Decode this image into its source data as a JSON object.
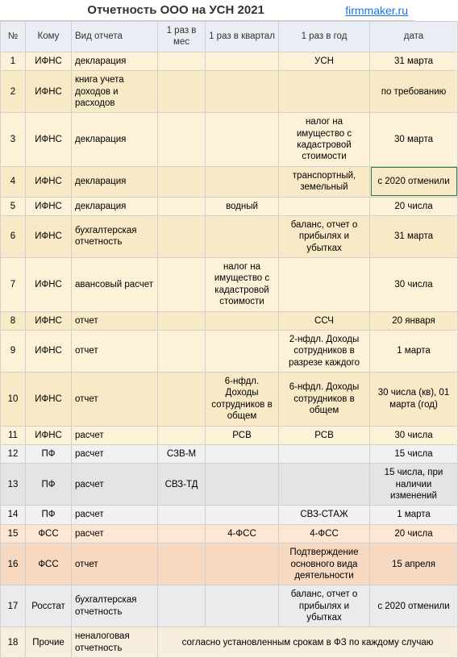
{
  "header": {
    "title": "Отчетность ООО на УСН 2021",
    "sitelink": "firmmaker.ru"
  },
  "columns": {
    "num": "№",
    "who": "Кому",
    "type": "Вид отчета",
    "mes": "1 раз в мес",
    "kv": "1 раз в квартал",
    "god": "1 раз в год",
    "date": "дата"
  },
  "rows": [
    {
      "n": "1",
      "who": "ИФНС",
      "type": "декларация",
      "mes": "",
      "kv": "",
      "god": "УСН",
      "date": "31 марта",
      "grp": "grp-ifns-odd"
    },
    {
      "n": "2",
      "who": "ИФНС",
      "type": "книга учета доходов и расходов",
      "mes": "",
      "kv": "",
      "god": "",
      "date": "по требованию",
      "grp": "grp-ifns-even"
    },
    {
      "n": "3",
      "who": "ИФНС",
      "type": "декларация",
      "mes": "",
      "kv": "",
      "god": "налог на имущество с кадастровой стоимости",
      "date": "30 марта",
      "grp": "grp-ifns-odd"
    },
    {
      "n": "4",
      "who": "ИФНС",
      "type": "декларация",
      "mes": "",
      "kv": "",
      "god": "транспортный, земельный",
      "date": "с 2020 отменили",
      "grp": "grp-ifns-even",
      "boxdate": true
    },
    {
      "n": "5",
      "who": "ИФНС",
      "type": "декларация",
      "mes": "",
      "kv": "водный",
      "god": "",
      "date": "20 числа",
      "grp": "grp-ifns-odd"
    },
    {
      "n": "6",
      "who": "ИФНС",
      "type": "бухгалтерская отчетность",
      "mes": "",
      "kv": "",
      "god": "баланс, отчет о прибылях и убытках",
      "date": "31 марта",
      "grp": "grp-ifns-even"
    },
    {
      "n": "7",
      "who": "ИФНС",
      "type": "авансовый расчет",
      "mes": "",
      "kv": "налог на имущество с кадастровой стоимости",
      "god": "",
      "date": "30 числа",
      "grp": "grp-ifns-odd"
    },
    {
      "n": "8",
      "who": "ИФНС",
      "type": "отчет",
      "mes": "",
      "kv": "",
      "god": "ССЧ",
      "date": "20 января",
      "grp": "grp-ifns-even"
    },
    {
      "n": "9",
      "who": "ИФНС",
      "type": "отчет",
      "mes": "",
      "kv": "",
      "god": "2-нфдл. Доходы сотрудников в разрезе каждого",
      "date": "1 марта",
      "grp": "grp-ifns-odd"
    },
    {
      "n": "10",
      "who": "ИФНС",
      "type": "отчет",
      "mes": "",
      "kv": "6-нфдл. Доходы сотрудников в общем",
      "god": "6-нфдл. Доходы сотрудников в общем",
      "date": "30 числа (кв), 01 марта (год)",
      "grp": "grp-ifns-even"
    },
    {
      "n": "11",
      "who": "ИФНС",
      "type": "расчет",
      "mes": "",
      "kv": "РСВ",
      "god": "РСВ",
      "date": "30 числа",
      "grp": "grp-ifns-odd"
    },
    {
      "n": "12",
      "who": "ПФ",
      "type": "расчет",
      "mes": "СЗВ-М",
      "kv": "",
      "god": "",
      "date": "15 числа",
      "grp": "grp-pf-odd"
    },
    {
      "n": "13",
      "who": "ПФ",
      "type": "расчет",
      "mes": "СВЗ-ТД",
      "kv": "",
      "god": "",
      "date": "15 числа, при наличии изменений",
      "grp": "grp-pf-even"
    },
    {
      "n": "14",
      "who": "ПФ",
      "type": "расчет",
      "mes": "",
      "kv": "",
      "god": "СВЗ-СТАЖ",
      "date": "1 марта",
      "grp": "grp-pf-odd"
    },
    {
      "n": "15",
      "who": "ФСС",
      "type": "расчет",
      "mes": "",
      "kv": "4-ФСС",
      "god": "4-ФСС",
      "date": "20 числа",
      "grp": "grp-fss-odd"
    },
    {
      "n": "16",
      "who": "ФСС",
      "type": "отчет",
      "mes": "",
      "kv": "",
      "god": "Подтверждение основного вида деятельности",
      "date": "15 апреля",
      "grp": "grp-fss-even"
    },
    {
      "n": "17",
      "who": "Росстат",
      "type": "бухгалтерская отчетность",
      "mes": "",
      "kv": "",
      "god": "баланс, отчет о прибылях и убытках",
      "date": "с 2020 отменили",
      "grp": "grp-ros"
    },
    {
      "n": "18",
      "who": "Прочие",
      "type": "неналоговая отчетность",
      "span": "согласно установленным срокам в ФЗ по каждому случаю",
      "grp": "grp-other"
    }
  ]
}
